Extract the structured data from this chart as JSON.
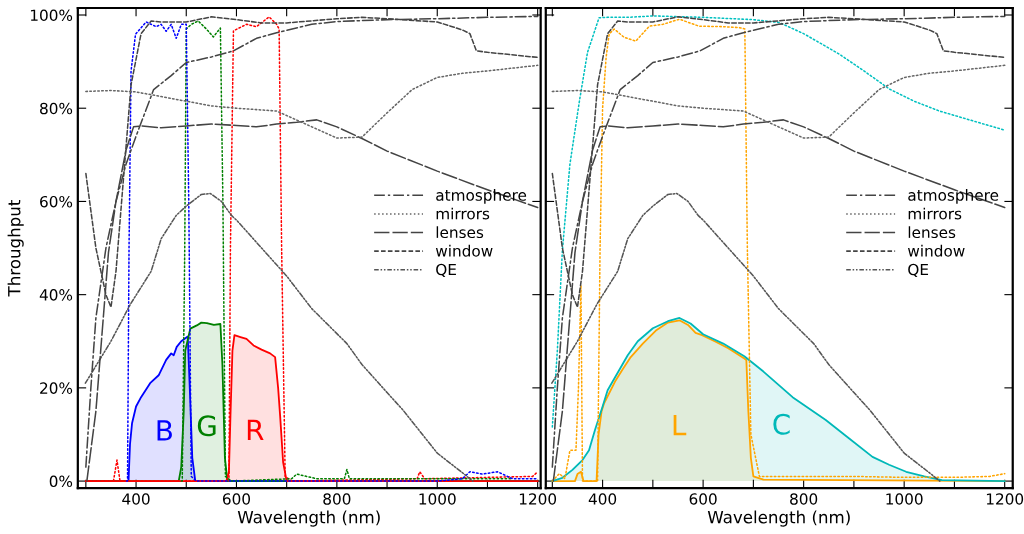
{
  "chart_data": [
    {
      "type": "line",
      "xlabel": "Wavelength (nm)",
      "ylabel": "Throughput",
      "xlim": [
        284,
        1206
      ],
      "ylim": [
        -1.5,
        101.5
      ],
      "xticks": [
        {
          "value": 300,
          "label": null
        },
        400,
        {
          "value": 500,
          "label": null
        },
        600,
        {
          "value": 700,
          "label": null
        },
        800,
        {
          "value": 900,
          "label": null
        },
        1000,
        {
          "value": 1100,
          "label": null
        },
        1200
      ],
      "yticks": [
        {
          "value": 0,
          "label": "0%"
        },
        {
          "value": 20,
          "label": "20%"
        },
        {
          "value": 40,
          "label": "40%"
        },
        {
          "value": 60,
          "label": "60%"
        },
        {
          "value": 80,
          "label": "80%"
        },
        {
          "value": 100,
          "label": "100%"
        }
      ],
      "grid": false,
      "legend": "right",
      "series": [
        {
          "name": "atmosphere",
          "line_style": "dashdot",
          "color": "#444444",
          "x": [
            300,
            310,
            320,
            340,
            360,
            380,
            400,
            435,
            470,
            500,
            550,
            594,
            640,
            680,
            750,
            800,
            900,
            1000,
            1100,
            1200
          ],
          "values": [
            3,
            20,
            35,
            50,
            60,
            68,
            74,
            84,
            87,
            89.8,
            91,
            92.3,
            95,
            96.2,
            98,
            98.6,
            99,
            99.2,
            99.5,
            99.7
          ]
        },
        {
          "name": "mirrors",
          "line_style": "dotted",
          "color": "#666666",
          "x": [
            300,
            350,
            400,
            450,
            500,
            550,
            600,
            680,
            750,
            800,
            850,
            900,
            950,
            1000,
            1050,
            1100,
            1200
          ],
          "values": [
            83.6,
            83.8,
            83.5,
            82.5,
            81.5,
            80.5,
            80,
            79.4,
            76,
            73.6,
            73.8,
            79,
            84,
            86.6,
            87.5,
            88,
            89.2
          ]
        },
        {
          "name": "lenses",
          "line_style": "longdash",
          "color": "#444444",
          "x": [
            302,
            320,
            345,
            360,
            380,
            395,
            412,
            450,
            500,
            550,
            600,
            640,
            680,
            720,
            760,
            800,
            850,
            900,
            1000,
            1100,
            1200
          ],
          "values": [
            0,
            15,
            49,
            60,
            71,
            76,
            76.2,
            75.8,
            76.2,
            76.6,
            76.3,
            76,
            76.6,
            77,
            77.5,
            76,
            73.5,
            70.8,
            66.5,
            62.5,
            58.7
          ]
        },
        {
          "name": "window",
          "line_style": "dashed",
          "color": "#444444",
          "x": [
            300,
            320,
            340,
            350,
            360,
            375,
            390,
            410,
            430,
            450,
            500,
            550,
            600,
            650,
            700,
            800,
            850,
            900,
            1000,
            1030,
            1052,
            1065,
            1078,
            1100,
            1200
          ],
          "values": [
            66,
            50,
            40,
            37.3,
            45,
            65,
            85,
            96,
            98.7,
            98.5,
            98.5,
            99.6,
            99,
            98.3,
            98.3,
            99.2,
            99.5,
            99.2,
            98.5,
            97.5,
            96.7,
            96,
            92.3,
            92,
            90.9
          ]
        },
        {
          "name": "QE",
          "line_style": "dashdotdot",
          "color": "#555555",
          "x": [
            299,
            350,
            389,
            430,
            450,
            480,
            500,
            530,
            548,
            570,
            590,
            601,
            650,
            700,
            750,
            820,
            850,
            900,
            932,
            1000,
            1050,
            1071
          ],
          "values": [
            21,
            30,
            38,
            45,
            52,
            57,
            59,
            61.5,
            61.7,
            60,
            57,
            55.9,
            50,
            44,
            37,
            29.5,
            25,
            19,
            15.2,
            6,
            1.8,
            0
          ]
        },
        {
          "line_style": "dotted",
          "color": "#0000ff",
          "x": [
            381,
            383,
            386,
            390,
            399,
            420,
            440,
            450,
            460,
            470,
            480,
            490,
            500,
            505,
            510,
            520,
            1000,
            1050,
            1065,
            1090,
            1120,
            1150,
            1200
          ],
          "values": [
            0,
            0,
            50,
            88,
            95.9,
            98.5,
            97.5,
            98,
            96.5,
            98,
            95,
            98,
            98,
            60,
            1,
            0,
            0,
            0.5,
            2,
            1.5,
            2,
            0.5,
            0.5
          ]
        },
        {
          "line_style": "dotted",
          "color": "#008000",
          "x": [
            490,
            492,
            497,
            500,
            510,
            524,
            540,
            554,
            568,
            573,
            578,
            590,
            710,
            720,
            760,
            815,
            820,
            825,
            1150
          ],
          "values": [
            0,
            0,
            50,
            97,
            98,
            98.7,
            97,
            95.3,
            97.2,
            60,
            1,
            0,
            0.5,
            1.5,
            0.5,
            0.5,
            2.5,
            0.5,
            0.5
          ]
        },
        {
          "line_style": "dotted",
          "color": "#ff0000",
          "x": [
            300,
            355,
            362,
            368,
            585,
            588,
            594,
            620,
            640,
            665,
            680,
            685,
            690,
            697,
            710,
            960,
            965,
            975,
            1190,
            1200
          ],
          "values": [
            0,
            0,
            4.5,
            0,
            0,
            50,
            96.6,
            98,
            97.5,
            99.6,
            98,
            97,
            50,
            1,
            0,
            0.5,
            2,
            0.5,
            1,
            2
          ]
        },
        {
          "name": "B",
          "type": "area",
          "color": "#0000ff",
          "x": [
            300,
            385,
            388,
            392,
            400,
            410,
            428,
            445,
            460,
            470,
            475,
            481,
            490,
            503,
            507,
            512,
            518,
            1200
          ],
          "values": [
            0,
            0,
            8,
            12.4,
            16,
            18,
            21,
            22.7,
            26,
            27.4,
            27,
            28.8,
            30,
            31,
            20,
            5,
            0,
            0
          ]
        },
        {
          "name": "G",
          "type": "area",
          "color": "#008000",
          "x": [
            300,
            485,
            490,
            495,
            498,
            508,
            521,
            530,
            541,
            555,
            568,
            572,
            577,
            582,
            1200
          ],
          "values": [
            0,
            0,
            3,
            15,
            28,
            32.7,
            33.4,
            34,
            33.9,
            33.5,
            33.7,
            25,
            5,
            0,
            0
          ]
        },
        {
          "name": "R",
          "type": "area",
          "color": "#ff0000",
          "x": [
            300,
            580,
            585,
            588,
            592,
            596,
            608,
            620,
            634,
            650,
            667,
            677,
            683,
            687,
            693,
            700,
            1200
          ],
          "values": [
            0,
            0,
            2,
            13.8,
            28,
            31.3,
            30.9,
            30.5,
            29.1,
            28.2,
            27.4,
            26.6,
            20,
            14,
            4,
            0,
            0
          ]
        }
      ]
    },
    {
      "type": "line",
      "xlabel": "Wavelength (nm)",
      "xlim": [
        287,
        1216
      ],
      "ylim": [
        -1.5,
        101.5
      ],
      "tick_labels": "x",
      "xticks": [
        {
          "value": 300,
          "label": null
        },
        400,
        {
          "value": 500,
          "label": null
        },
        600,
        {
          "value": 700,
          "label": null
        },
        800,
        {
          "value": 900,
          "label": null
        },
        1000,
        {
          "value": 1100,
          "label": null
        },
        1200
      ],
      "yticks": [
        {
          "value": 0,
          "label": null
        },
        {
          "value": 20,
          "label": null
        },
        {
          "value": 40,
          "label": null
        },
        {
          "value": 60,
          "label": null
        },
        {
          "value": 80,
          "label": null
        },
        {
          "value": 100,
          "label": null
        }
      ],
      "grid": false,
      "legend": "right",
      "series": [
        {
          "name": "atmosphere",
          "line_style": "dashdot",
          "color": "#444444",
          "x": [
            300,
            310,
            320,
            340,
            360,
            380,
            400,
            435,
            470,
            500,
            550,
            594,
            640,
            680,
            750,
            800,
            900,
            1000,
            1100,
            1200
          ],
          "values": [
            3,
            20,
            35,
            50,
            60,
            68,
            74,
            84,
            87,
            89.8,
            91,
            92.3,
            95,
            96.2,
            98,
            98.6,
            99,
            99.2,
            99.5,
            99.7
          ]
        },
        {
          "name": "mirrors",
          "line_style": "dotted",
          "color": "#666666",
          "x": [
            300,
            350,
            400,
            450,
            500,
            550,
            600,
            680,
            750,
            800,
            850,
            900,
            950,
            1000,
            1050,
            1100,
            1200
          ],
          "values": [
            83.6,
            83.8,
            83.5,
            82.5,
            81.5,
            80.5,
            80,
            79.4,
            76,
            73.6,
            73.8,
            79,
            84,
            86.6,
            87.5,
            88,
            89.2
          ]
        },
        {
          "name": "lenses",
          "line_style": "longdash",
          "color": "#444444",
          "x": [
            302,
            320,
            345,
            360,
            380,
            395,
            412,
            450,
            500,
            550,
            600,
            640,
            680,
            720,
            760,
            800,
            850,
            900,
            1000,
            1100,
            1200
          ],
          "values": [
            0,
            15,
            49,
            60,
            71,
            76,
            76.2,
            75.8,
            76.2,
            76.6,
            76.3,
            76,
            76.6,
            77,
            77.5,
            76,
            73.5,
            70.8,
            66.5,
            62.5,
            58.7
          ]
        },
        {
          "name": "window",
          "line_style": "dashed",
          "color": "#444444",
          "x": [
            300,
            320,
            340,
            350,
            360,
            375,
            390,
            410,
            430,
            450,
            500,
            550,
            600,
            650,
            700,
            800,
            850,
            900,
            1000,
            1030,
            1052,
            1065,
            1078,
            1100,
            1200
          ],
          "values": [
            66,
            50,
            40,
            37.3,
            45,
            65,
            85,
            96,
            98.7,
            98.5,
            98.5,
            99.6,
            99,
            98.3,
            98.3,
            99.2,
            99.5,
            99.2,
            98.5,
            97.5,
            96.7,
            96,
            92.3,
            92,
            90.9
          ]
        },
        {
          "name": "QE",
          "line_style": "dashdotdot",
          "color": "#555555",
          "x": [
            299,
            350,
            389,
            430,
            450,
            480,
            500,
            530,
            548,
            570,
            590,
            601,
            650,
            700,
            750,
            820,
            850,
            900,
            932,
            1000,
            1050,
            1071
          ],
          "values": [
            21,
            30,
            38,
            45,
            52,
            57,
            59,
            61.5,
            61.7,
            60,
            57,
            55.9,
            50,
            44,
            37,
            29.5,
            25,
            19,
            15.2,
            6,
            1.8,
            0
          ]
        },
        {
          "line_style": "dotted",
          "color": "#ffa500",
          "x": [
            300,
            314,
            325,
            335,
            347,
            352,
            357,
            360,
            390,
            395,
            400,
            407,
            413,
            423,
            443,
            466,
            493,
            520,
            553,
            592,
            640,
            672,
            683,
            688,
            695,
            712,
            800,
            900,
            1000,
            1100,
            1170,
            1200
          ],
          "values": [
            0,
            1.6,
            0.5,
            6.6,
            6.6,
            20,
            42,
            0,
            0,
            50,
            80,
            90.9,
            95.9,
            97,
            95.2,
            94.4,
            97.6,
            98,
            99.1,
            97.6,
            97.5,
            97.3,
            97,
            50,
            10,
            1,
            1,
            1,
            0.8,
            0.8,
            1,
            1.6
          ]
        },
        {
          "line_style": "dotted",
          "color": "#00c0c0",
          "x": [
            300,
            310,
            320,
            335,
            354,
            370,
            393,
            410,
            450,
            500,
            600,
            700,
            751,
            800,
            871,
            920,
            971,
            1020,
            1070,
            1130,
            1200
          ],
          "values": [
            11.6,
            28,
            49.5,
            68,
            81.6,
            92,
            99.4,
            99.5,
            99.5,
            99.8,
            99.5,
            99,
            98.4,
            96,
            91.6,
            88,
            84.1,
            81.5,
            79.4,
            77.5,
            75.3
          ]
        },
        {
          "name": "L",
          "type": "area",
          "color": "#ffa500",
          "x": [
            300,
            345,
            350,
            357,
            362,
            388,
            392,
            398,
            403,
            426,
            440,
            456,
            480,
            506,
            530,
            553,
            570,
            585,
            598,
            625,
            650,
            682,
            686,
            690,
            695,
            700,
            720,
            1200
          ],
          "values": [
            0,
            0,
            1.5,
            2,
            0,
            0,
            10,
            15,
            16.7,
            21.6,
            24,
            26.6,
            29.5,
            32.3,
            34,
            34.5,
            33.5,
            31.8,
            31.3,
            29.9,
            28.5,
            26.3,
            26,
            15,
            5,
            1,
            0.3,
            0
          ]
        },
        {
          "name": "C",
          "type": "area",
          "color": "#00b8b8",
          "x": [
            300,
            320,
            340,
            360,
            373,
            385,
            400,
            410,
            426,
            450,
            470,
            500,
            530,
            553,
            575,
            600,
            640,
            682,
            720,
            778,
            844,
            890,
            937,
            970,
            1004,
            1040,
            1075,
            1200
          ],
          "values": [
            0,
            0.7,
            2.4,
            4.5,
            6.6,
            11,
            16,
            19.5,
            22.5,
            27,
            30,
            32.8,
            34.3,
            35,
            33.8,
            31.5,
            29.5,
            26.8,
            23.5,
            18,
            13.1,
            9.2,
            5.2,
            3.5,
            2,
            1,
            0.2,
            0
          ]
        }
      ]
    }
  ]
}
